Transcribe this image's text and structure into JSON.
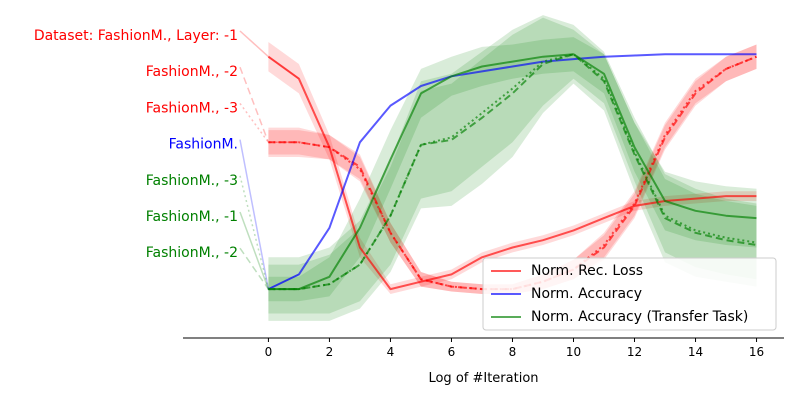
{
  "chart_data": {
    "type": "line",
    "title": "",
    "xlabel": "Log of #Iteration",
    "ylabel": "",
    "x": [
      0,
      1,
      2,
      3,
      4,
      5,
      6,
      7,
      8,
      9,
      10,
      11,
      12,
      13,
      14,
      15,
      16
    ],
    "xticks": [
      0,
      2,
      4,
      6,
      8,
      10,
      12,
      14,
      16
    ],
    "xlim": [
      -2.8,
      16.9
    ],
    "ylim": [
      -0.2,
      1.1
    ],
    "grid": false,
    "legend": {
      "position": "lower-right",
      "entries": [
        {
          "label": "Norm. Rec. Loss",
          "color": "#ff0000"
        },
        {
          "label": "Norm. Accuracy",
          "color": "#0000ff"
        },
        {
          "label": "Norm. Accuracy (Transfer Task)",
          "color": "#008000"
        }
      ]
    },
    "series": [
      {
        "name": "Rec. Loss, FashionM., -1",
        "metric": "Norm. Rec. Loss",
        "color": "#ff0000",
        "style": "solid",
        "values": [
          0.95,
          0.86,
          0.58,
          0.17,
          0.0,
          0.03,
          0.06,
          0.13,
          0.17,
          0.2,
          0.24,
          0.29,
          0.34,
          0.36,
          0.37,
          0.38,
          0.38
        ],
        "band": [
          0.06,
          0.06,
          0.05,
          0.04,
          0.02,
          0.02,
          0.02,
          0.02,
          0.02,
          0.02,
          0.02,
          0.02,
          0.02,
          0.02,
          0.02,
          0.02,
          0.02
        ]
      },
      {
        "name": "Rec. Loss, FashionM., -2",
        "metric": "Norm. Rec. Loss",
        "color": "#ff0000",
        "style": "dashed",
        "values": [
          0.6,
          0.6,
          0.58,
          0.5,
          0.23,
          0.04,
          0.01,
          0.0,
          0.0,
          0.03,
          0.08,
          0.17,
          0.34,
          0.62,
          0.8,
          0.9,
          0.95
        ],
        "band": [
          0.06,
          0.06,
          0.05,
          0.05,
          0.04,
          0.03,
          0.02,
          0.02,
          0.02,
          0.03,
          0.04,
          0.05,
          0.05,
          0.05,
          0.05,
          0.05,
          0.05
        ]
      },
      {
        "name": "Rec. Loss, FashionM., -3",
        "metric": "Norm. Rec. Loss",
        "color": "#ff0000",
        "style": "dotted",
        "values": [
          0.6,
          0.6,
          0.58,
          0.49,
          0.23,
          0.04,
          0.01,
          0.0,
          0.0,
          0.03,
          0.08,
          0.18,
          0.35,
          0.63,
          0.81,
          0.9,
          0.95
        ],
        "band": [
          0.05,
          0.05,
          0.05,
          0.05,
          0.04,
          0.03,
          0.02,
          0.02,
          0.02,
          0.03,
          0.04,
          0.05,
          0.05,
          0.05,
          0.05,
          0.05,
          0.05
        ]
      },
      {
        "name": "Accuracy, FashionM.",
        "metric": "Norm. Accuracy",
        "color": "#0000ff",
        "style": "solid",
        "values": [
          0.0,
          0.06,
          0.25,
          0.6,
          0.75,
          0.83,
          0.87,
          0.89,
          0.91,
          0.93,
          0.94,
          0.95,
          0.955,
          0.96,
          0.96,
          0.96,
          0.96
        ],
        "band": [
          0,
          0,
          0,
          0,
          0,
          0,
          0,
          0,
          0,
          0,
          0,
          0,
          0,
          0,
          0,
          0,
          0
        ]
      },
      {
        "name": "Accuracy (Transfer Task), FashionM., -1",
        "metric": "Norm. Accuracy (Transfer Task)",
        "color": "#008000",
        "style": "solid",
        "values": [
          0.0,
          0.0,
          0.05,
          0.25,
          0.53,
          0.8,
          0.87,
          0.91,
          0.93,
          0.95,
          0.96,
          0.88,
          0.58,
          0.36,
          0.32,
          0.3,
          0.29
        ],
        "band": [
          0.05,
          0.05,
          0.08,
          0.12,
          0.12,
          0.1,
          0.08,
          0.08,
          0.07,
          0.07,
          0.07,
          0.08,
          0.1,
          0.12,
          0.12,
          0.12,
          0.12
        ]
      },
      {
        "name": "Accuracy (Transfer Task), FashionM., -2",
        "metric": "Norm. Accuracy (Transfer Task)",
        "color": "#008000",
        "style": "dashed",
        "values": [
          0.0,
          0.0,
          0.02,
          0.1,
          0.3,
          0.59,
          0.61,
          0.7,
          0.8,
          0.92,
          0.96,
          0.85,
          0.55,
          0.29,
          0.23,
          0.2,
          0.18
        ],
        "band": [
          0.13,
          0.13,
          0.15,
          0.18,
          0.23,
          0.26,
          0.27,
          0.27,
          0.26,
          0.2,
          0.12,
          0.12,
          0.15,
          0.18,
          0.18,
          0.17,
          0.17
        ]
      },
      {
        "name": "Accuracy (Transfer Task), FashionM., -3",
        "metric": "Norm. Accuracy (Transfer Task)",
        "color": "#008000",
        "style": "dotted",
        "values": [
          0.0,
          0.0,
          0.02,
          0.1,
          0.3,
          0.59,
          0.62,
          0.72,
          0.82,
          0.93,
          0.96,
          0.86,
          0.56,
          0.3,
          0.24,
          0.21,
          0.19
        ],
        "band": [
          0.1,
          0.1,
          0.12,
          0.15,
          0.2,
          0.22,
          0.22,
          0.22,
          0.22,
          0.18,
          0.1,
          0.1,
          0.12,
          0.15,
          0.15,
          0.15,
          0.15
        ]
      }
    ],
    "side_labels": [
      {
        "text": "Dataset: FashionM., Layer: -1",
        "color": "#ff0000",
        "series_index": 0
      },
      {
        "text": "FashionM., -2",
        "color": "#ff0000",
        "series_index": 1
      },
      {
        "text": "FashionM., -3",
        "color": "#ff0000",
        "series_index": 2
      },
      {
        "text": "FashionM.",
        "color": "#0000ff",
        "series_index": 3
      },
      {
        "text": "FashionM., -3",
        "color": "#008000",
        "series_index": 6
      },
      {
        "text": "FashionM., -1",
        "color": "#008000",
        "series_index": 4
      },
      {
        "text": "FashionM., -2",
        "color": "#008000",
        "series_index": 5
      }
    ]
  }
}
